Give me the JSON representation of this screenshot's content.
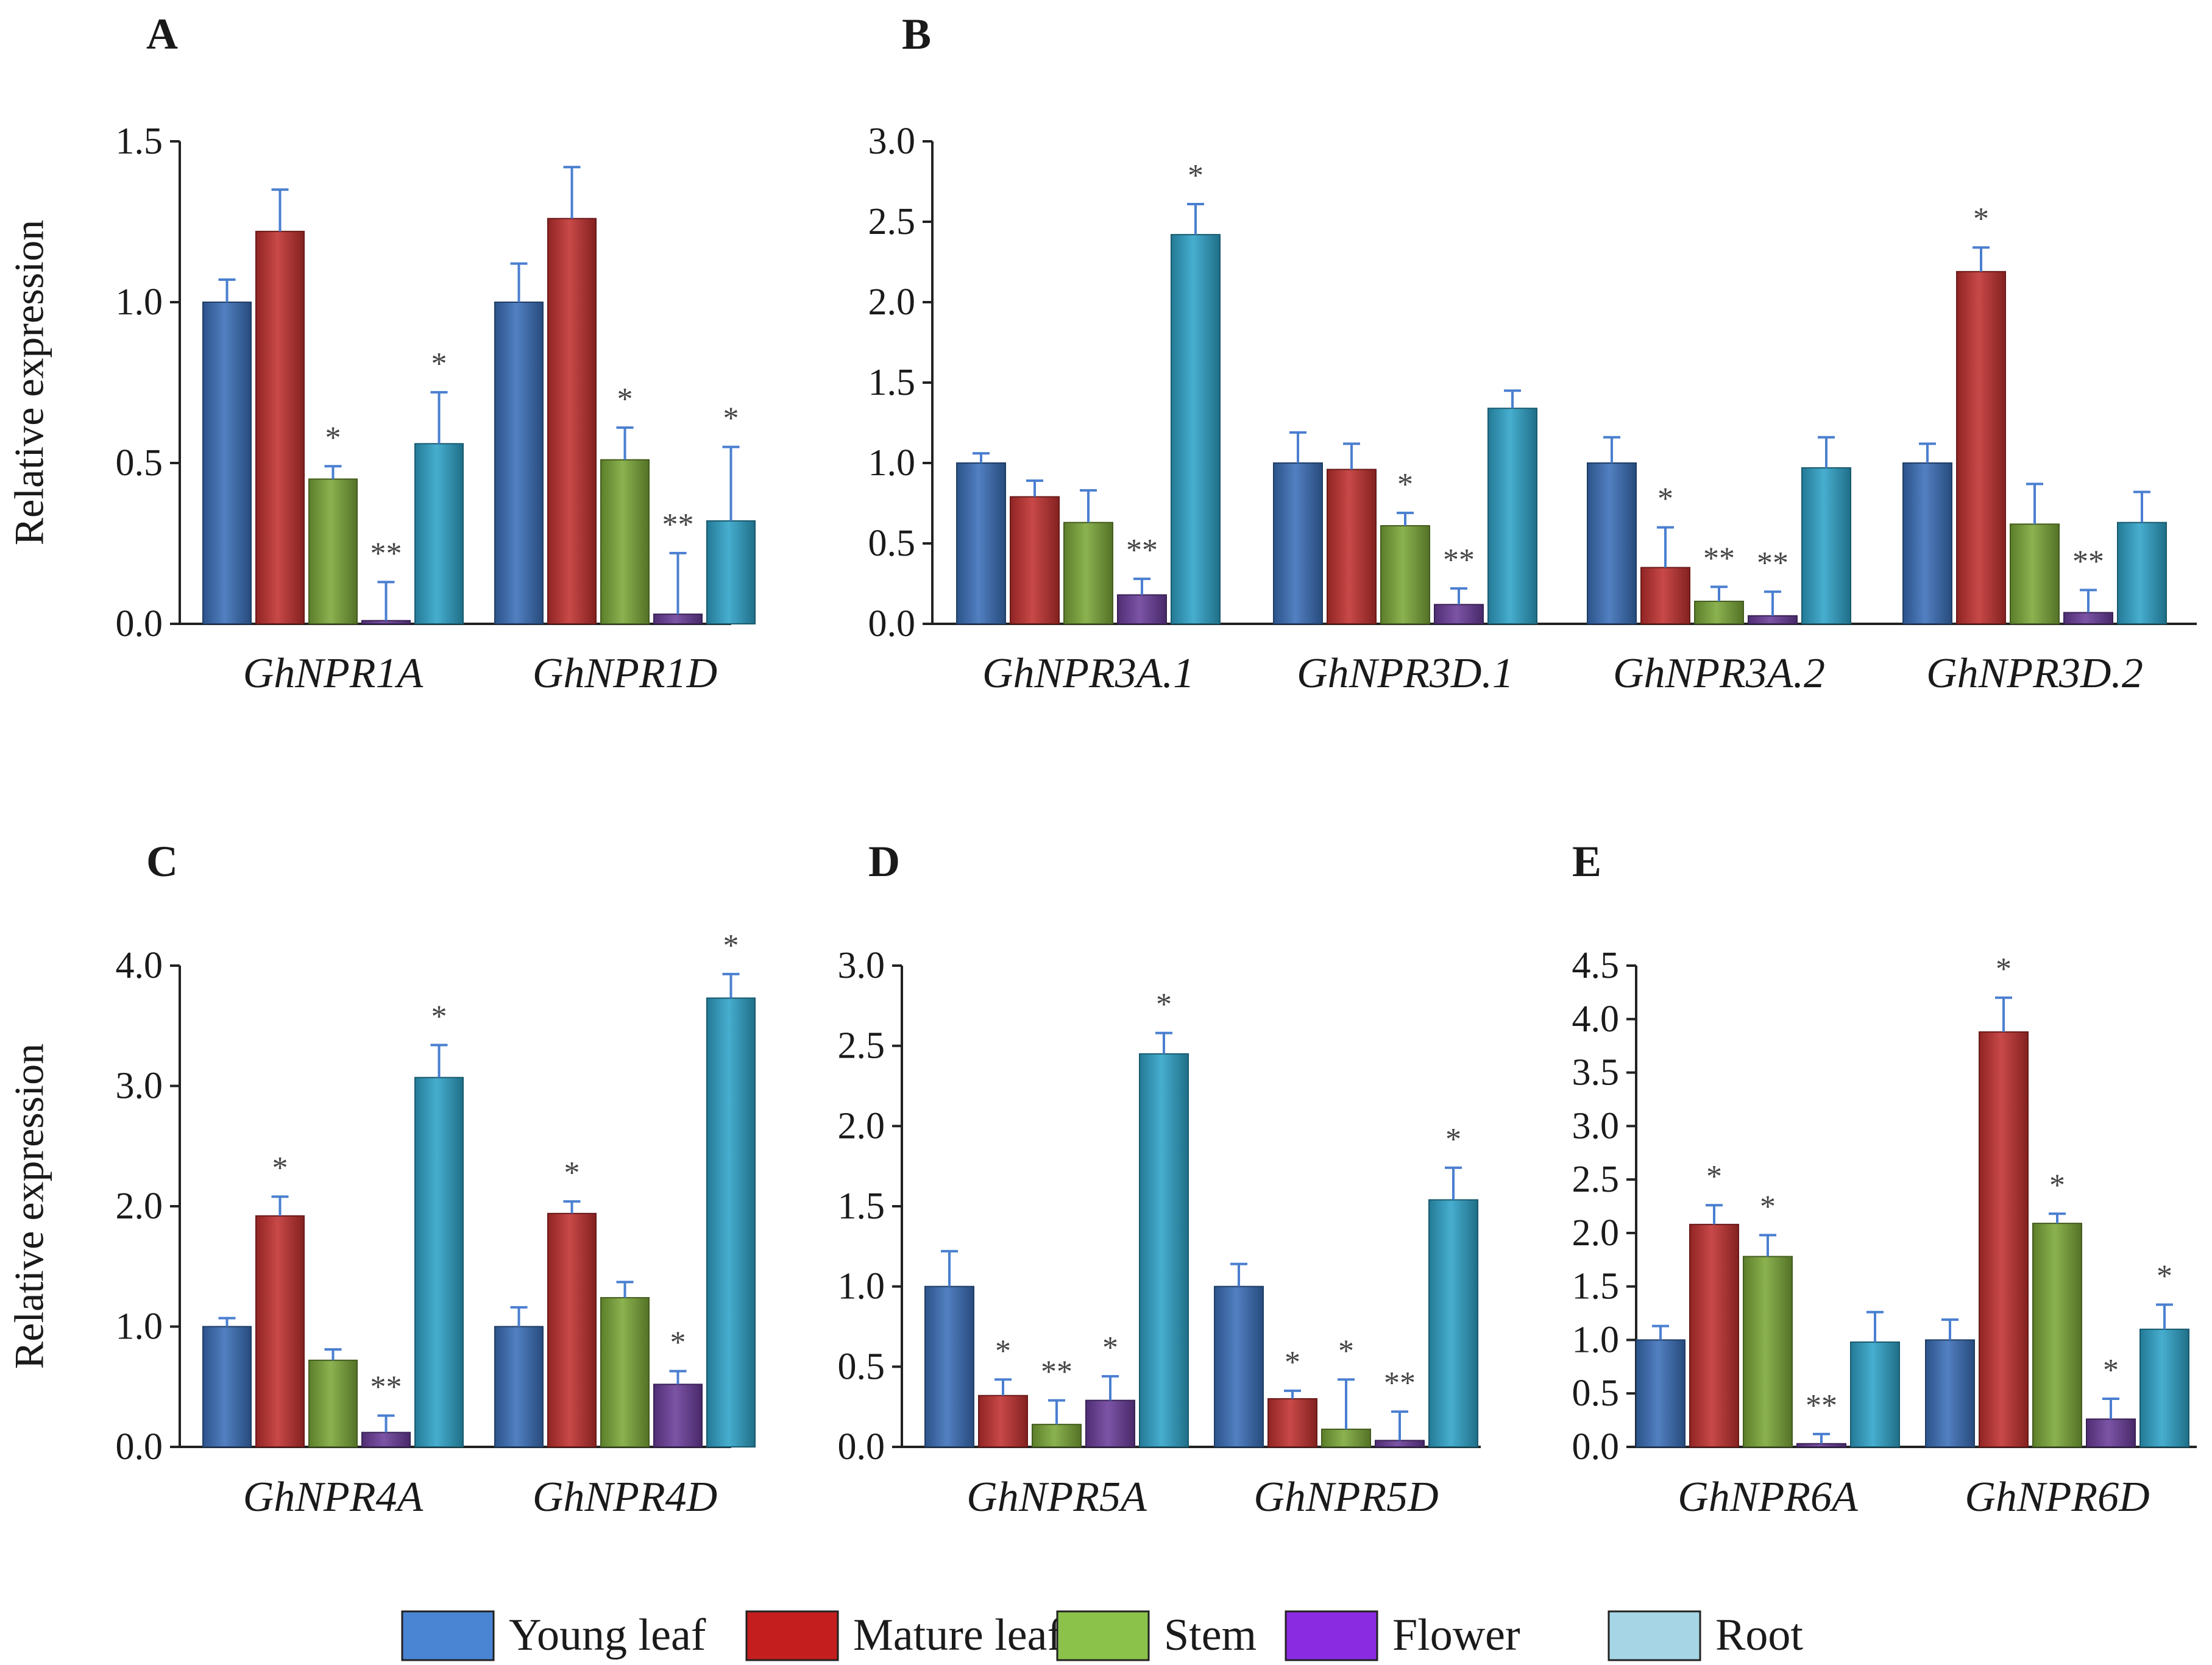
{
  "colors": {
    "Young leaf": "#3a6fb8",
    "Mature leaf": "#c0302f",
    "Stem": "#7ba838",
    "Flower": "#6a3d9a",
    "Root": "#2ea3c8"
  },
  "legend": {
    "items": [
      {
        "label": "Young leaf",
        "swatch": "#4a85d4"
      },
      {
        "label": "Mature leaf",
        "swatch": "#c41e1e"
      },
      {
        "label": "Stem",
        "swatch": "#8bc34a"
      },
      {
        "label": "Flower",
        "swatch": "#8a2be2"
      },
      {
        "label": "Root",
        "swatch": "#a6d6e6"
      }
    ]
  },
  "chart_data": [
    {
      "panel": "A",
      "type": "bar",
      "ylabel": "Relative expression",
      "ylim": [
        0,
        1.5
      ],
      "yticks": [
        "0.0",
        "0.5",
        "1.0",
        "1.5"
      ],
      "categories": [
        "GhNPR1A",
        "GhNPR1D"
      ],
      "series": [
        {
          "name": "Young leaf",
          "values": [
            1.0,
            1.0
          ],
          "errors": [
            0.07,
            0.12
          ],
          "sig": [
            "",
            ""
          ]
        },
        {
          "name": "Mature leaf",
          "values": [
            1.22,
            1.26
          ],
          "errors": [
            0.13,
            0.16
          ],
          "sig": [
            "",
            ""
          ]
        },
        {
          "name": "Stem",
          "values": [
            0.45,
            0.51
          ],
          "errors": [
            0.04,
            0.1
          ],
          "sig": [
            "*",
            "*"
          ]
        },
        {
          "name": "Flower",
          "values": [
            0.01,
            0.03
          ],
          "errors": [
            0.12,
            0.19
          ],
          "sig": [
            "**",
            "**"
          ]
        },
        {
          "name": "Root",
          "values": [
            0.56,
            0.32
          ],
          "errors": [
            0.16,
            0.23
          ],
          "sig": [
            "*",
            "*"
          ]
        }
      ]
    },
    {
      "panel": "B",
      "type": "bar",
      "ylabel": "",
      "ylim": [
        0,
        3.0
      ],
      "yticks": [
        "0.0",
        "0.5",
        "1.0",
        "1.5",
        "2.0",
        "2.5",
        "3.0"
      ],
      "categories": [
        "GhNPR3A.1",
        "GhNPR3D.1",
        "GhNPR3A.2",
        "GhNPR3D.2"
      ],
      "series": [
        {
          "name": "Young leaf",
          "values": [
            1.0,
            1.0,
            1.0,
            1.0
          ],
          "errors": [
            0.06,
            0.19,
            0.16,
            0.12
          ],
          "sig": [
            "",
            "",
            "",
            ""
          ]
        },
        {
          "name": "Mature leaf",
          "values": [
            0.79,
            0.96,
            0.35,
            2.19
          ],
          "errors": [
            0.1,
            0.16,
            0.25,
            0.15
          ],
          "sig": [
            "",
            "",
            "*",
            "*"
          ]
        },
        {
          "name": "Stem",
          "values": [
            0.63,
            0.61,
            0.14,
            0.62
          ],
          "errors": [
            0.2,
            0.08,
            0.09,
            0.25
          ],
          "sig": [
            "",
            "*",
            "**",
            ""
          ]
        },
        {
          "name": "Flower",
          "values": [
            0.18,
            0.12,
            0.05,
            0.07
          ],
          "errors": [
            0.1,
            0.1,
            0.15,
            0.14
          ],
          "sig": [
            "**",
            "**",
            "**",
            "**"
          ]
        },
        {
          "name": "Root",
          "values": [
            2.42,
            1.34,
            0.97,
            0.63
          ],
          "errors": [
            0.19,
            0.11,
            0.19,
            0.19
          ],
          "sig": [
            "*",
            "",
            "",
            ""
          ]
        }
      ]
    },
    {
      "panel": "C",
      "type": "bar",
      "ylabel": "Relative expression",
      "ylim": [
        0,
        4.0
      ],
      "yticks": [
        "0.0",
        "1.0",
        "2.0",
        "3.0",
        "4.0"
      ],
      "categories": [
        "GhNPR4A",
        "GhNPR4D"
      ],
      "series": [
        {
          "name": "Young leaf",
          "values": [
            1.0,
            1.0
          ],
          "errors": [
            0.07,
            0.16
          ],
          "sig": [
            "",
            ""
          ]
        },
        {
          "name": "Mature leaf",
          "values": [
            1.92,
            1.94
          ],
          "errors": [
            0.16,
            0.1
          ],
          "sig": [
            "*",
            "*"
          ]
        },
        {
          "name": "Stem",
          "values": [
            0.72,
            1.24
          ],
          "errors": [
            0.09,
            0.13
          ],
          "sig": [
            "",
            ""
          ]
        },
        {
          "name": "Flower",
          "values": [
            0.12,
            0.52
          ],
          "errors": [
            0.14,
            0.11
          ],
          "sig": [
            "**",
            "*"
          ]
        },
        {
          "name": "Root",
          "values": [
            3.07,
            3.73
          ],
          "errors": [
            0.27,
            0.2
          ],
          "sig": [
            "*",
            "*"
          ]
        }
      ]
    },
    {
      "panel": "D",
      "type": "bar",
      "ylabel": "",
      "ylim": [
        0,
        3.0
      ],
      "yticks": [
        "0.0",
        "0.5",
        "1.0",
        "1.5",
        "2.0",
        "2.5",
        "3.0"
      ],
      "categories": [
        "GhNPR5A",
        "GhNPR5D"
      ],
      "series": [
        {
          "name": "Young leaf",
          "values": [
            1.0,
            1.0
          ],
          "errors": [
            0.22,
            0.14
          ],
          "sig": [
            "",
            ""
          ]
        },
        {
          "name": "Mature leaf",
          "values": [
            0.32,
            0.3
          ],
          "errors": [
            0.1,
            0.05
          ],
          "sig": [
            "*",
            "*"
          ]
        },
        {
          "name": "Stem",
          "values": [
            0.14,
            0.11
          ],
          "errors": [
            0.15,
            0.31
          ],
          "sig": [
            "**",
            "*"
          ]
        },
        {
          "name": "Flower",
          "values": [
            0.29,
            0.04
          ],
          "errors": [
            0.15,
            0.18
          ],
          "sig": [
            "*",
            "**"
          ]
        },
        {
          "name": "Root",
          "values": [
            2.45,
            1.54
          ],
          "errors": [
            0.13,
            0.2
          ],
          "sig": [
            "*",
            "*"
          ]
        }
      ]
    },
    {
      "panel": "E",
      "type": "bar",
      "ylabel": "",
      "ylim": [
        0,
        4.5
      ],
      "yticks": [
        "0.0",
        "0.5",
        "1.0",
        "1.5",
        "2.0",
        "2.5",
        "3.0",
        "3.5",
        "4.0",
        "4.5"
      ],
      "categories": [
        "GhNPR6A",
        "GhNPR6D"
      ],
      "series": [
        {
          "name": "Young leaf",
          "values": [
            1.0,
            1.0
          ],
          "errors": [
            0.13,
            0.19
          ],
          "sig": [
            "",
            ""
          ]
        },
        {
          "name": "Mature leaf",
          "values": [
            2.08,
            3.88
          ],
          "errors": [
            0.18,
            0.32
          ],
          "sig": [
            "*",
            "*"
          ]
        },
        {
          "name": "Stem",
          "values": [
            1.78,
            2.09
          ],
          "errors": [
            0.2,
            0.09
          ],
          "sig": [
            "*",
            "*"
          ]
        },
        {
          "name": "Flower",
          "values": [
            0.03,
            0.26
          ],
          "errors": [
            0.09,
            0.19
          ],
          "sig": [
            "**",
            "*"
          ]
        },
        {
          "name": "Root",
          "values": [
            0.98,
            1.1
          ],
          "errors": [
            0.28,
            0.23
          ],
          "sig": [
            "",
            "*"
          ]
        }
      ]
    }
  ]
}
